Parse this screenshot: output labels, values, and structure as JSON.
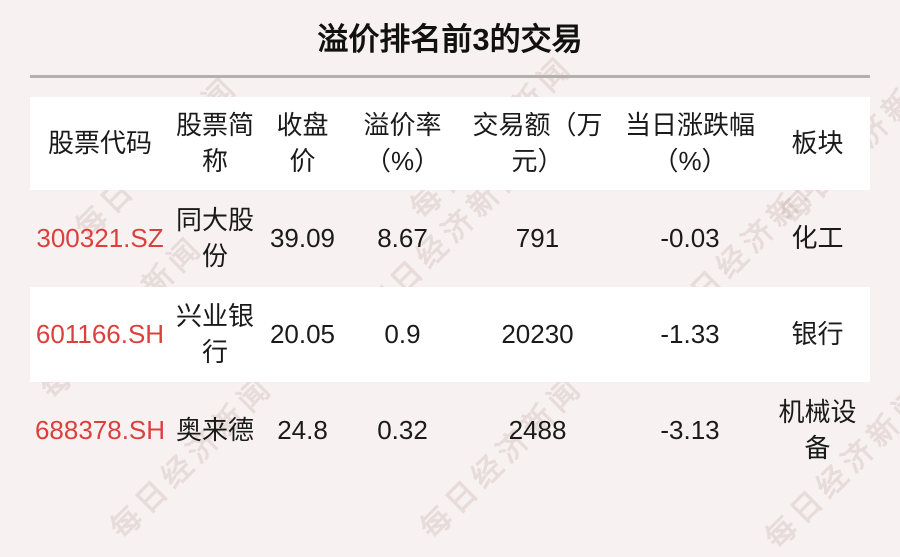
{
  "title": "溢价排名前3的交易",
  "watermark": {
    "text": "每日经济新闻"
  },
  "colors": {
    "background": "#f7f2f1",
    "row_stripe": "#ffffff",
    "stock_code_red": "#dc403d",
    "title_divider_gray": "#b3b0ae",
    "text": "#1a1a1a"
  },
  "table": {
    "headers": {
      "code": "股票代码",
      "name": "股票简\n称",
      "close": "收盘\n价",
      "premium": "溢价率\n（%）",
      "amount": "交易额（万\n元）",
      "change": "当日涨跌幅\n（%）",
      "sector": "板块"
    },
    "rows": [
      {
        "code": "300321.SZ",
        "name": "同大股\n份",
        "close": "39.09",
        "premium": "8.67",
        "amount": "791",
        "change": "-0.03",
        "sector": "化工"
      },
      {
        "code": "601166.SH",
        "name": "兴业银\n行",
        "close": "20.05",
        "premium": "0.9",
        "amount": "20230",
        "change": "-1.33",
        "sector": "银行"
      },
      {
        "code": "688378.SH",
        "name": "奥来德",
        "close": "24.8",
        "premium": "0.32",
        "amount": "2488",
        "change": "-3.13",
        "sector": "机械设\n备"
      }
    ]
  },
  "chart_data": {
    "type": "table",
    "title": "溢价排名前3的交易",
    "columns": [
      "股票代码",
      "股票简称",
      "收盘价",
      "溢价率（%）",
      "交易额（万元）",
      "当日涨跌幅（%）",
      "板块"
    ],
    "rows": [
      [
        "300321.SZ",
        "同大股份",
        39.09,
        8.67,
        791,
        -0.03,
        "化工"
      ],
      [
        "601166.SH",
        "兴业银行",
        20.05,
        0.9,
        20230,
        -1.33,
        "银行"
      ],
      [
        "688378.SH",
        "奥来德",
        24.8,
        0.32,
        2488,
        -3.13,
        "机械设备"
      ]
    ],
    "source_watermark": "每日经济新闻"
  }
}
